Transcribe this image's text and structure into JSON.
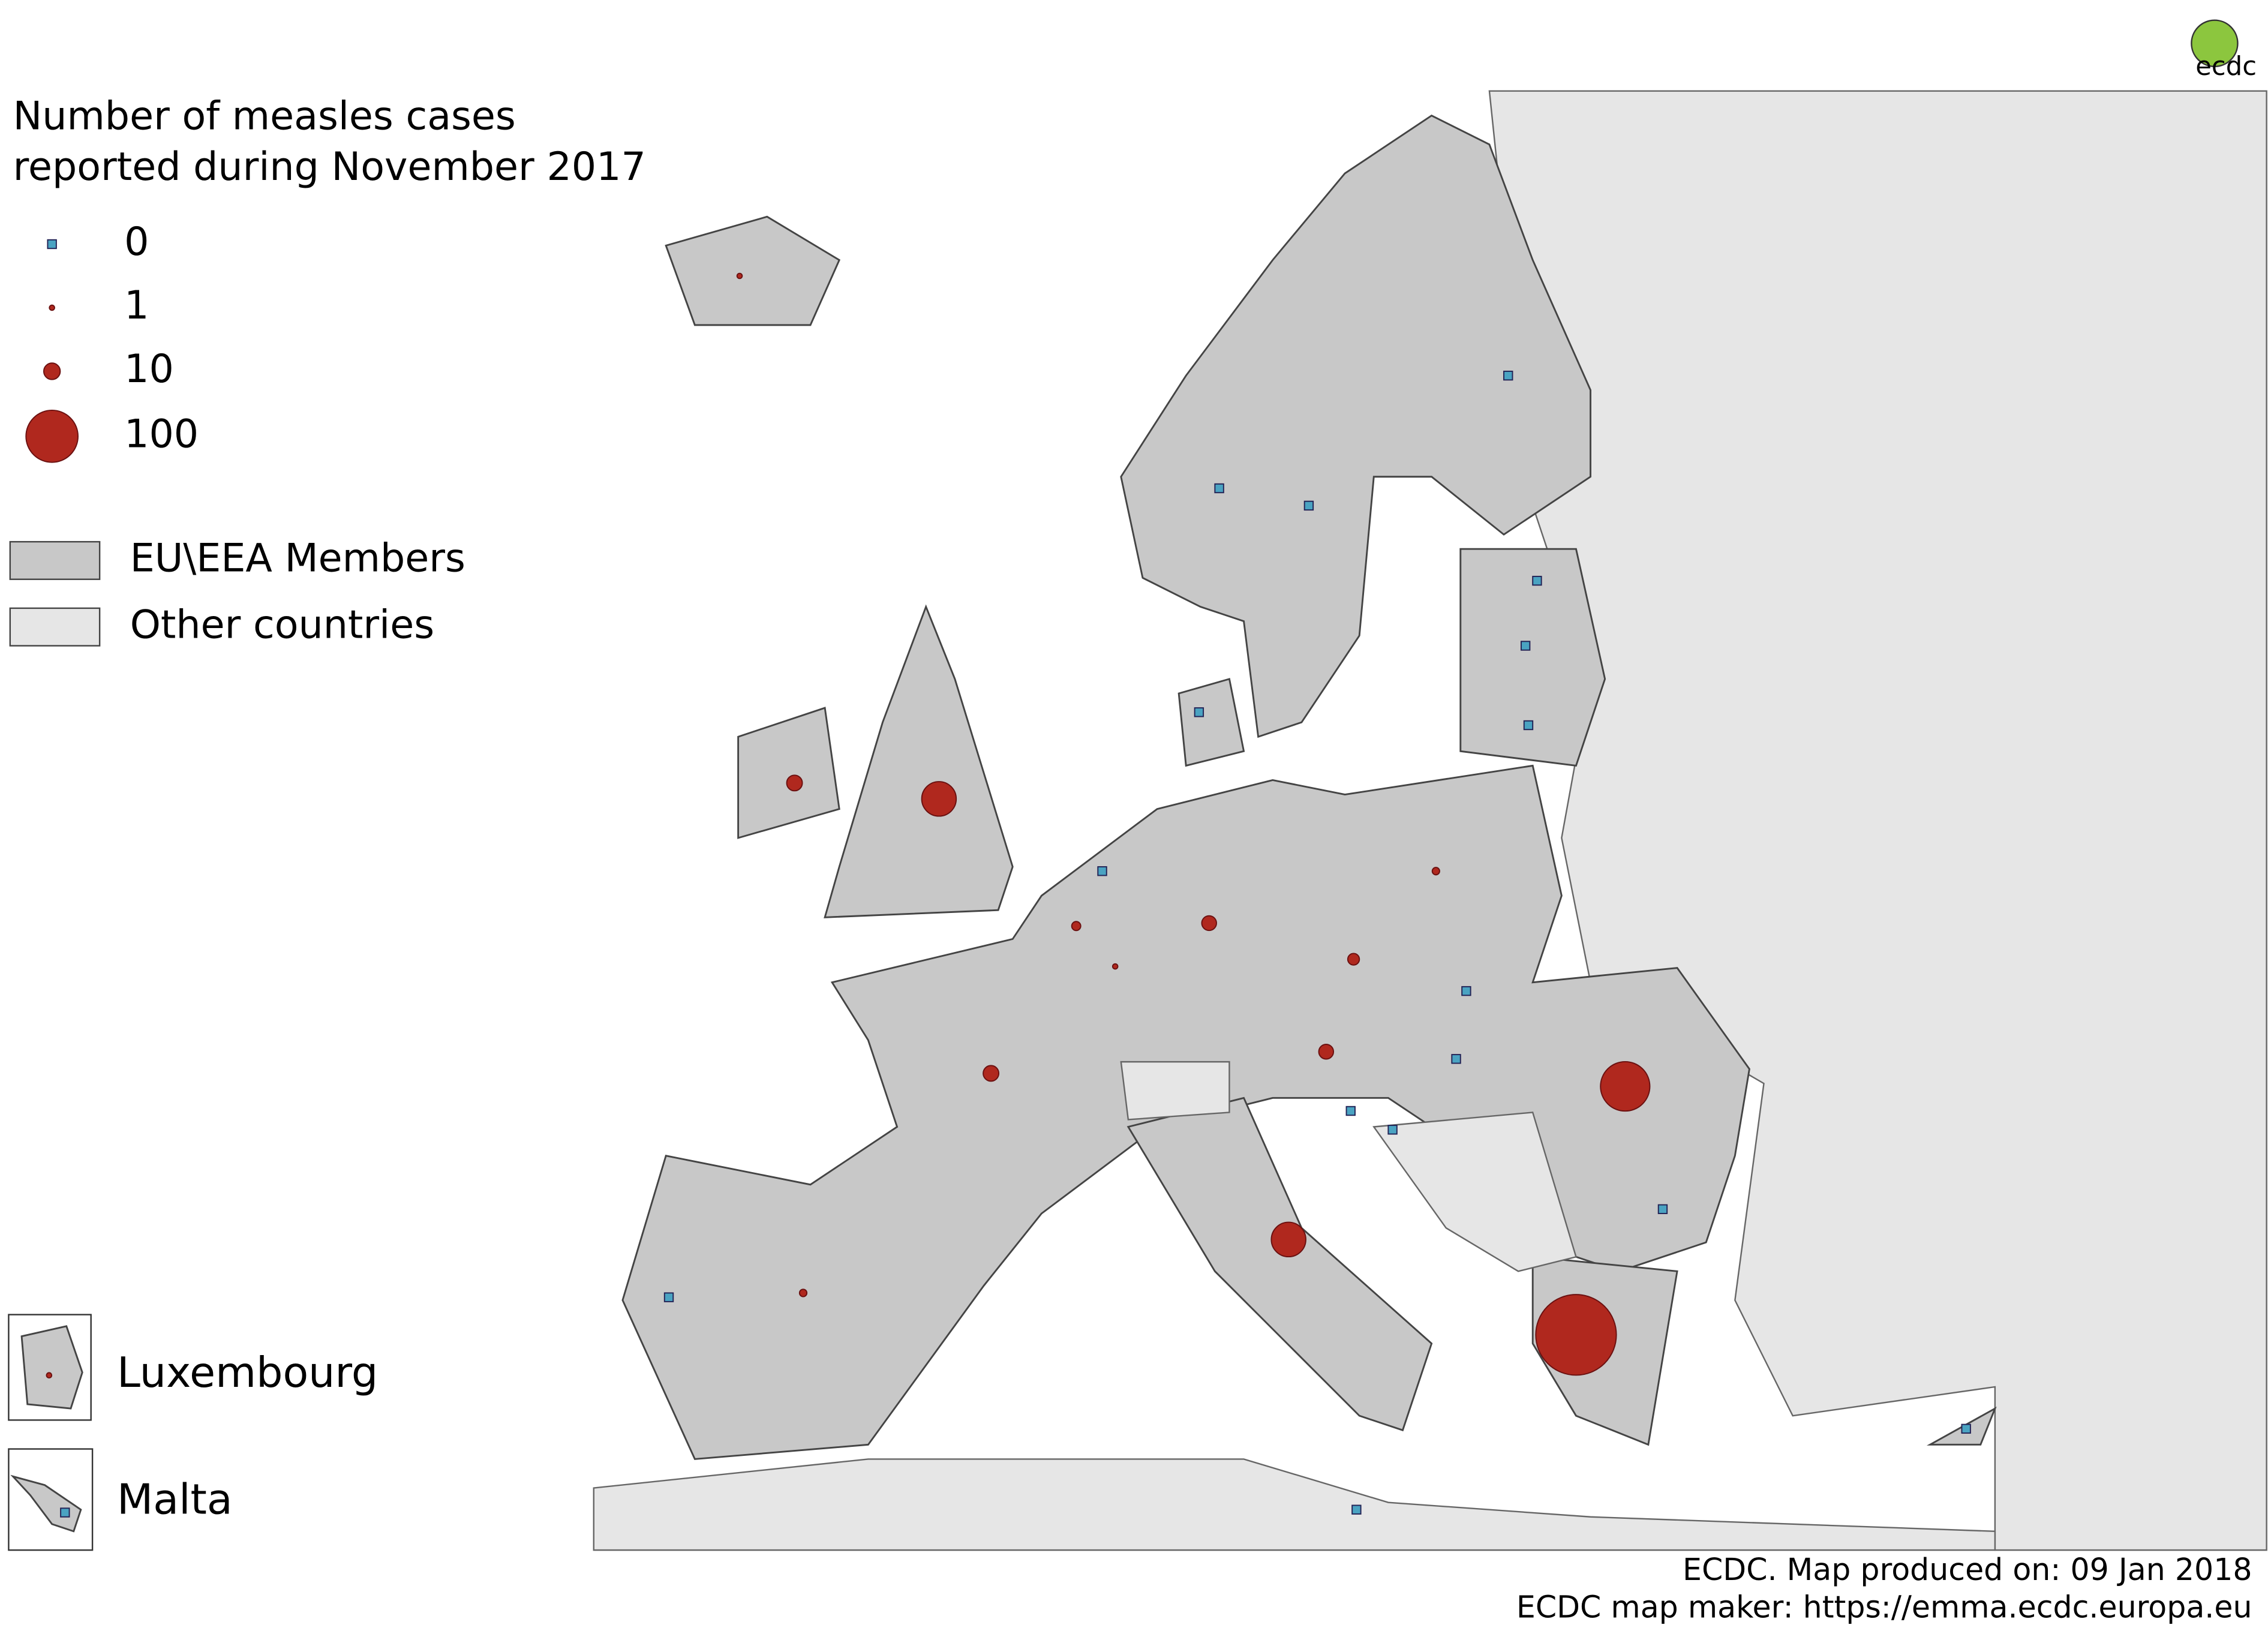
{
  "logo": "ecdc",
  "legend": {
    "title": [
      "Number of measles cases",
      "reported during November 2017"
    ],
    "sizes": [
      0,
      1,
      10,
      100
    ],
    "areas": [
      {
        "label": "EU\\EEA Members",
        "color": "#c8c8c8"
      },
      {
        "label": "Other countries",
        "color": "#e6e6e6"
      }
    ]
  },
  "insets": [
    "Luxembourg",
    "Malta"
  ],
  "marker_color": "#b0281e",
  "zero_color": "#4aa3c2",
  "markers": [
    240,
    90,
    44,
    44,
    9,
    9,
    8,
    8,
    5,
    3,
    2,
    2,
    1,
    1,
    1,
    0,
    0,
    0,
    0,
    0,
    0,
    0,
    0,
    0,
    0,
    0,
    0,
    0,
    0,
    0,
    0,
    0
  ],
  "footer": [
    "ECDC. Map produced on: 09 Jan 2018",
    "ECDC map maker: https://emma.ecdc.europa.eu"
  ]
}
